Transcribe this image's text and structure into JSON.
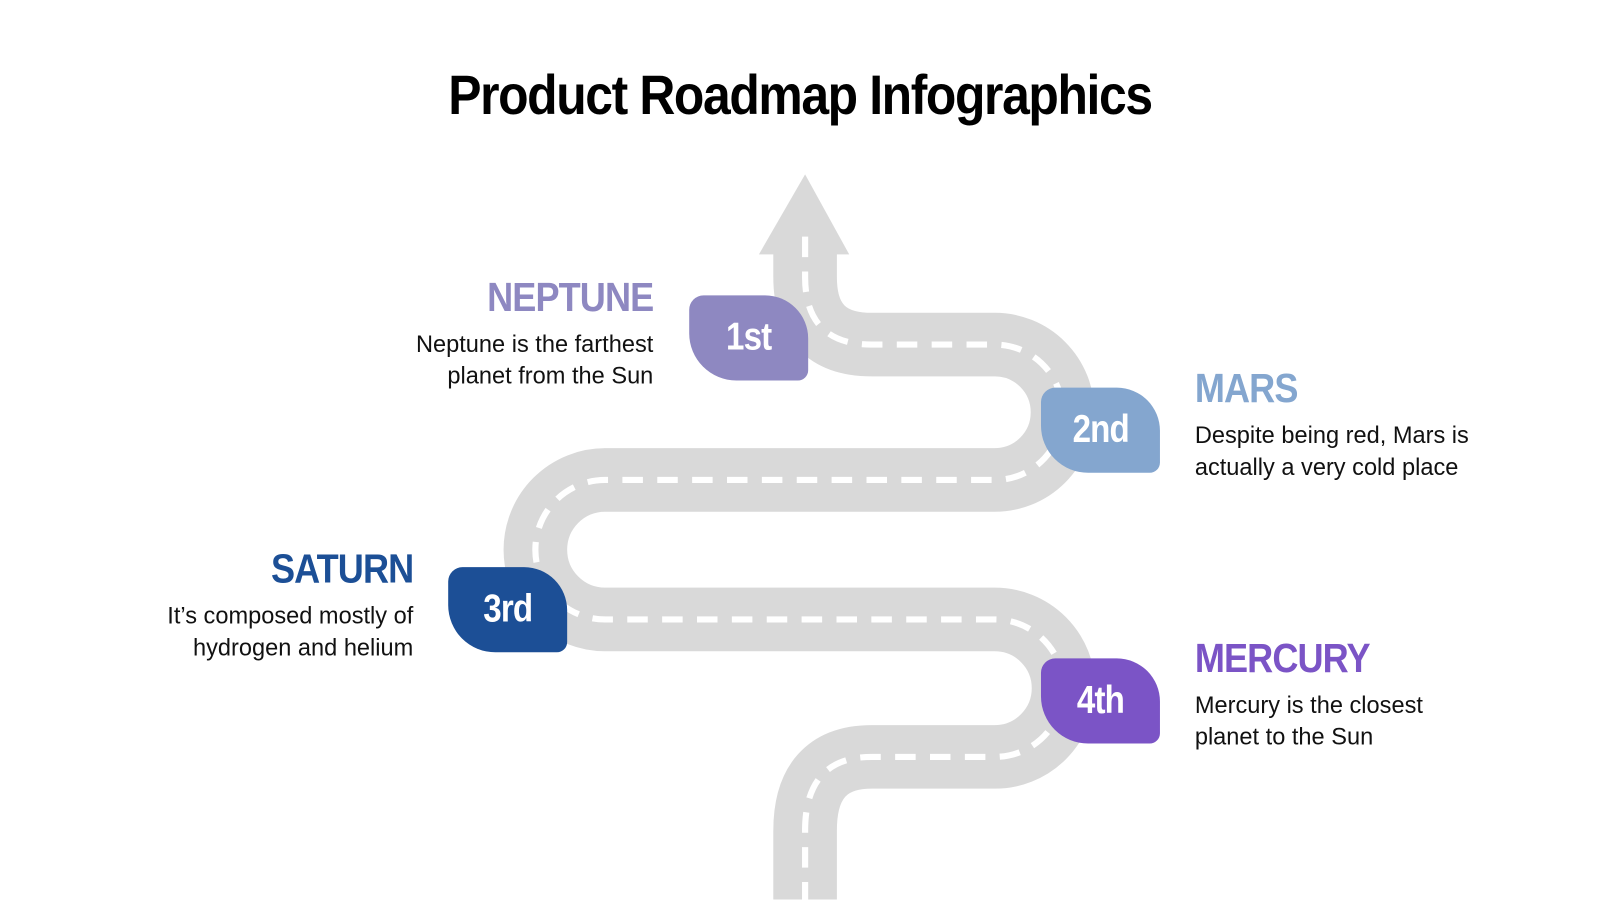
{
  "title": "Product Roadmap Infographics",
  "steps": [
    {
      "badge": "1st",
      "name": "NEPTUNE",
      "text": "Neptune is the farthest planet from the Sun",
      "color": "#8e88c1"
    },
    {
      "badge": "2nd",
      "name": "MARS",
      "text": "Despite being red, Mars is actually a very cold place",
      "color": "#84a6cf"
    },
    {
      "badge": "3rd",
      "name": "SATURN",
      "text": "It’s composed mostly of hydrogen and helium",
      "color": "#1c4f96"
    },
    {
      "badge": "4th",
      "name": "MERCURY",
      "text": "Mercury is the closest planet to the Sun",
      "color": "#7b54c6"
    }
  ],
  "road": {
    "color": "#d9d9d9",
    "dash_color": "#ffffff",
    "icon": "arrow-up-icon"
  }
}
